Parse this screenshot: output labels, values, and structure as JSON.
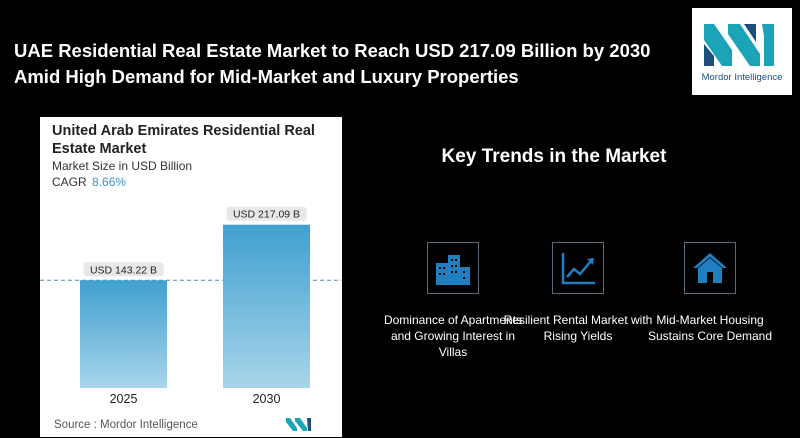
{
  "headline": "UAE Residential Real Estate Market to Reach USD 217.09 Billion by 2030 Amid High Demand for Mid-Market and Luxury Properties",
  "logo": {
    "name": "Mordor Intelligence",
    "icon": "mordor-logo-icon"
  },
  "card": {
    "title": "United Arab Emirates Residential Real Estate Market",
    "subtitle": "Market Size in USD Billion",
    "cagr_label": "CAGR",
    "cagr_value": "8.66%",
    "source": "Source :  Mordor Intelligence"
  },
  "chart_data": {
    "type": "bar",
    "categories": [
      "2025",
      "2030"
    ],
    "values": [
      143.22,
      217.09
    ],
    "data_labels": [
      "USD 143.22 B",
      "USD 217.09 B"
    ],
    "title": "United Arab Emirates Residential Real Estate Market",
    "ylabel": "Market Size in USD Billion",
    "ylim": [
      0,
      230
    ],
    "grid": false,
    "reference_line": 143.22,
    "colors": {
      "bar_top": "#3fa0d0",
      "bar_bottom": "#a8d5ea"
    }
  },
  "trends": {
    "title": "Key Trends in the Market",
    "items": [
      {
        "label": "Dominance of Apartments and Growing Interest in Villas",
        "icon": "buildings-icon"
      },
      {
        "label": "Resilient Rental Market with Rising Yields",
        "icon": "line-chart-icon"
      },
      {
        "label": "Mid-Market Housing Sustains Core Demand",
        "icon": "house-icon"
      }
    ]
  },
  "colors": {
    "accent": "#1f6fa8",
    "icon_blue": "#1f7fc0",
    "background": "#000000"
  }
}
